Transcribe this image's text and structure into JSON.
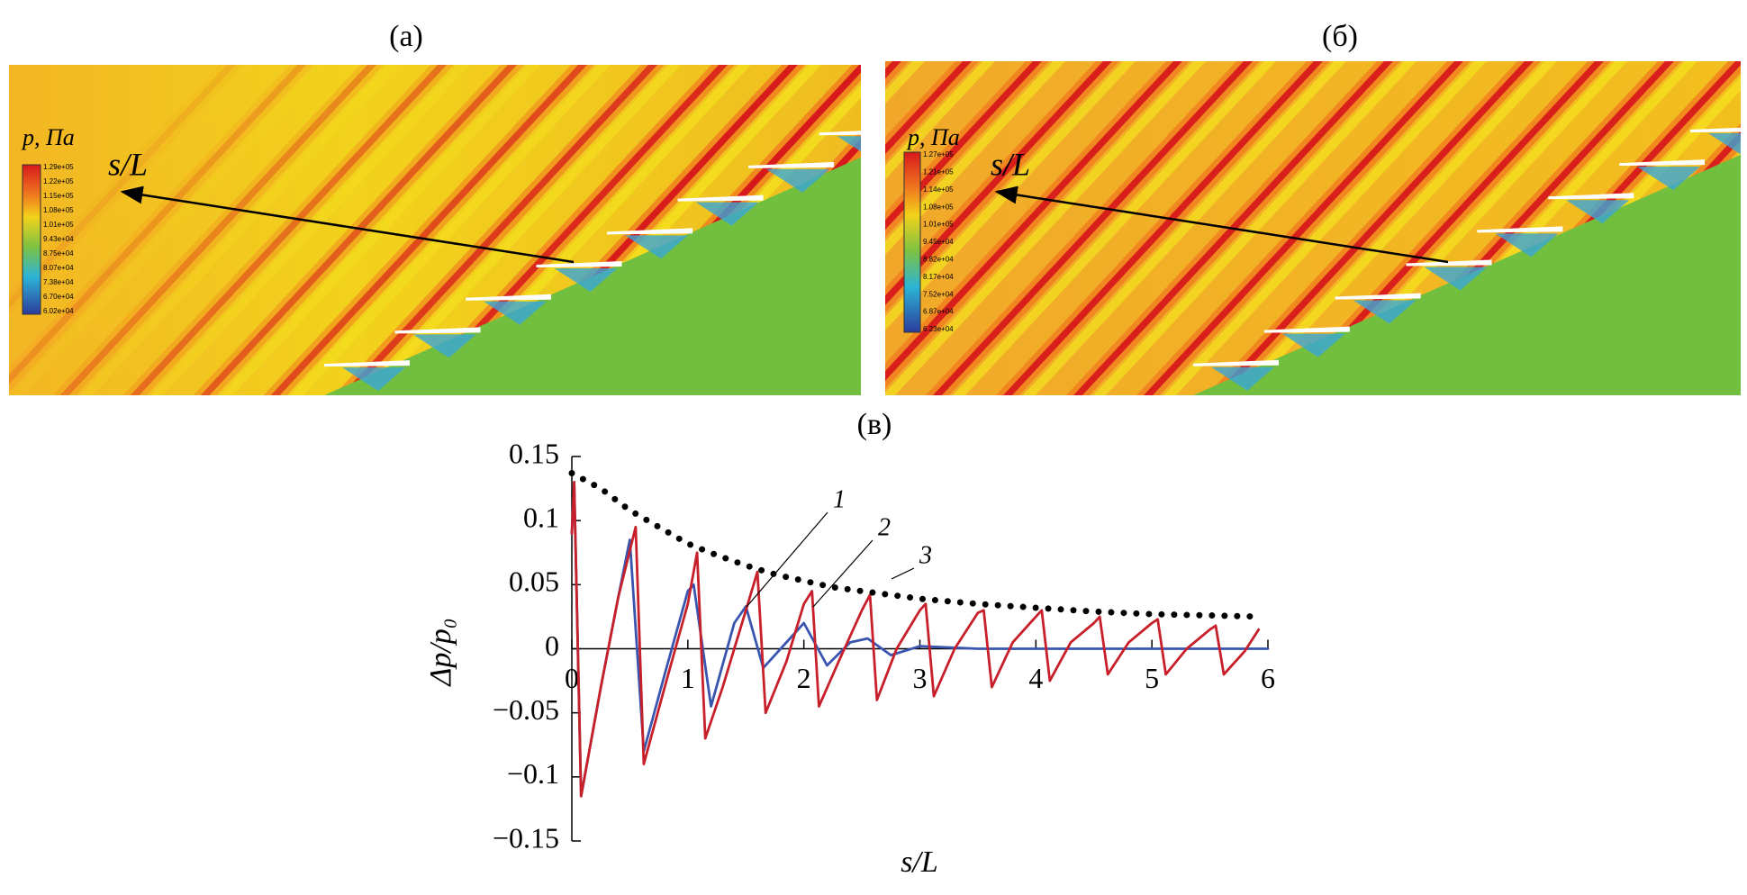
{
  "panels": [
    {
      "label": "(а)",
      "arrow_label": "s/L",
      "colorbar": {
        "title": "p, Па",
        "ticks": [
          "1.29e+05",
          "1.22e+05",
          "1.15e+05",
          "1.08e+05",
          "1.01e+05",
          "9.43e+04",
          "8.75e+04",
          "8.07e+04",
          "7.38e+04",
          "6.70e+04",
          "6.02e+04"
        ]
      }
    },
    {
      "label": "(б)",
      "arrow_label": "s/L",
      "colorbar": {
        "title": "p, Па",
        "ticks": [
          "1.27e+05",
          "1.21e+05",
          "1.14e+05",
          "1.08e+05",
          "1.01e+05",
          "9.45e+04",
          "8.82e+04",
          "8.17e+04",
          "7.52e+04",
          "6.87e+04",
          "6.23e+04"
        ]
      }
    }
  ],
  "chart_data": {
    "type": "line",
    "title": "(в)",
    "x_label": "s/L",
    "y_label": "Δp/p₀",
    "xlim": [
      0,
      6
    ],
    "ylim": [
      -0.15,
      0.15
    ],
    "xticks": [
      0,
      1,
      2,
      3,
      4,
      5,
      6
    ],
    "yticks": [
      {
        "value": -0.15,
        "label": "−0.15"
      },
      {
        "value": -0.1,
        "label": "−0.1"
      },
      {
        "value": -0.05,
        "label": "−0.05"
      },
      0,
      0.05,
      0.1,
      0.15
    ],
    "series": [
      {
        "name": "1",
        "color": "#3a55b0",
        "style": "solid",
        "x": [
          0,
          0.02,
          0.08,
          0.25,
          0.4,
          0.5,
          0.62,
          0.8,
          1.0,
          1.05,
          1.2,
          1.4,
          1.5,
          1.65,
          1.75,
          2.0,
          2.2,
          2.4,
          2.55,
          2.75,
          3.0,
          3.5,
          4,
          5,
          6
        ],
        "values": [
          0.09,
          0.13,
          -0.115,
          -0.03,
          0.04,
          0.085,
          -0.08,
          -0.02,
          0.045,
          0.05,
          -0.045,
          0.02,
          0.033,
          -0.015,
          -0.005,
          0.02,
          -0.013,
          0.005,
          0.008,
          -0.005,
          0.002,
          0,
          0,
          0,
          0
        ]
      },
      {
        "name": "2",
        "color": "#c8202a",
        "style": "solid",
        "x": [
          0,
          0.02,
          0.08,
          0.25,
          0.4,
          0.55,
          0.62,
          0.8,
          1.0,
          1.08,
          1.15,
          1.3,
          1.5,
          1.6,
          1.67,
          1.85,
          2.0,
          2.07,
          2.13,
          2.3,
          2.5,
          2.57,
          2.63,
          2.8,
          3.0,
          3.05,
          3.12,
          3.3,
          3.5,
          3.55,
          3.62,
          3.8,
          4.0,
          4.05,
          4.12,
          4.3,
          4.5,
          4.55,
          4.62,
          4.8,
          5.0,
          5.05,
          5.12,
          5.3,
          5.5,
          5.55,
          5.62,
          5.8,
          5.92
        ],
        "values": [
          0.09,
          0.13,
          -0.115,
          -0.03,
          0.04,
          0.095,
          -0.09,
          -0.03,
          0.035,
          0.075,
          -0.07,
          -0.03,
          0.03,
          0.06,
          -0.05,
          -0.01,
          0.035,
          0.045,
          -0.045,
          -0.01,
          0.03,
          0.042,
          -0.04,
          0,
          0.03,
          0.035,
          -0.037,
          0,
          0.028,
          0.03,
          -0.03,
          0.005,
          0.025,
          0.03,
          -0.025,
          0.005,
          0.02,
          0.025,
          -0.02,
          0.005,
          0.02,
          0.023,
          -0.02,
          0,
          0.015,
          0.018,
          -0.02,
          -0.002,
          0.015
        ]
      },
      {
        "name": "3",
        "color": "#000000",
        "style": "dotted",
        "x": [
          0,
          0.25,
          0.5,
          0.75,
          1,
          1.25,
          1.5,
          1.75,
          2,
          2.25,
          2.5,
          2.75,
          3,
          3.5,
          4,
          4.5,
          5,
          5.5,
          5.95
        ],
        "values": [
          0.137,
          0.125,
          0.108,
          0.095,
          0.082,
          0.073,
          0.065,
          0.058,
          0.053,
          0.048,
          0.045,
          0.042,
          0.039,
          0.035,
          0.032,
          0.029,
          0.027,
          0.026,
          0.025
        ]
      }
    ]
  }
}
